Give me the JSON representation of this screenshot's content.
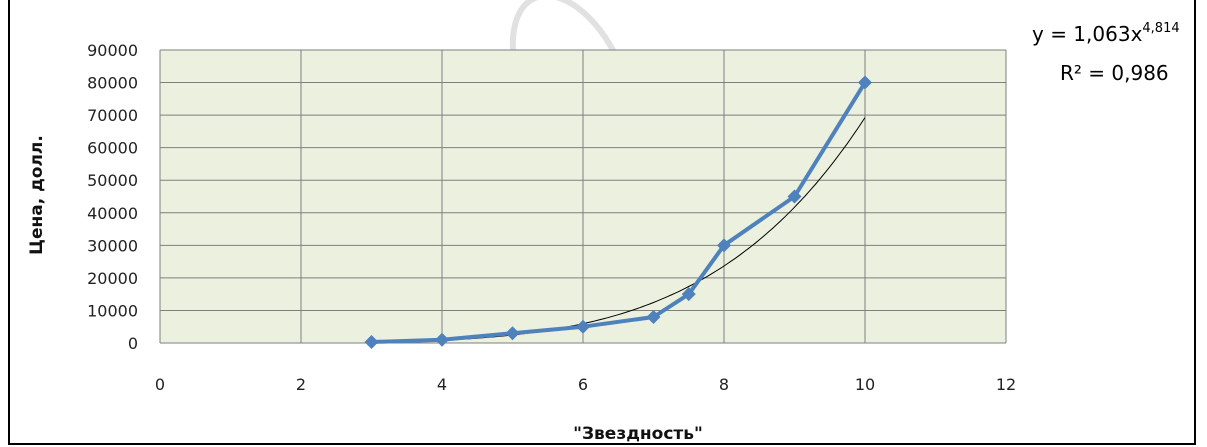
{
  "chart_data": {
    "type": "line",
    "title": "",
    "xlabel": "\"Звездность\"",
    "ylabel": "Цена, долл.",
    "xlim": [
      0,
      12
    ],
    "ylim": [
      0,
      90000
    ],
    "x_ticks": [
      "0",
      "2",
      "4",
      "6",
      "8",
      "10",
      "12"
    ],
    "y_ticks": [
      "0",
      "10000",
      "20000",
      "30000",
      "40000",
      "50000",
      "60000",
      "70000",
      "80000",
      "90000"
    ],
    "grid": true,
    "series": [
      {
        "x": [
          3,
          4,
          5,
          6,
          7,
          7.5,
          8,
          9,
          10
        ],
        "y": [
          300,
          1000,
          3000,
          5000,
          8000,
          15000,
          30000,
          45000,
          80000
        ],
        "color": "#4f81bd"
      }
    ],
    "trendline": {
      "type": "power",
      "a": 1.063,
      "b": 4.814,
      "color": "#000000",
      "equation_lhs": "y = 1,063x",
      "equation_exp": "4,814",
      "r2_label": "R² = 0,986"
    },
    "plot_background": "#ebf1de",
    "grid_color": "#7f7f7f"
  }
}
